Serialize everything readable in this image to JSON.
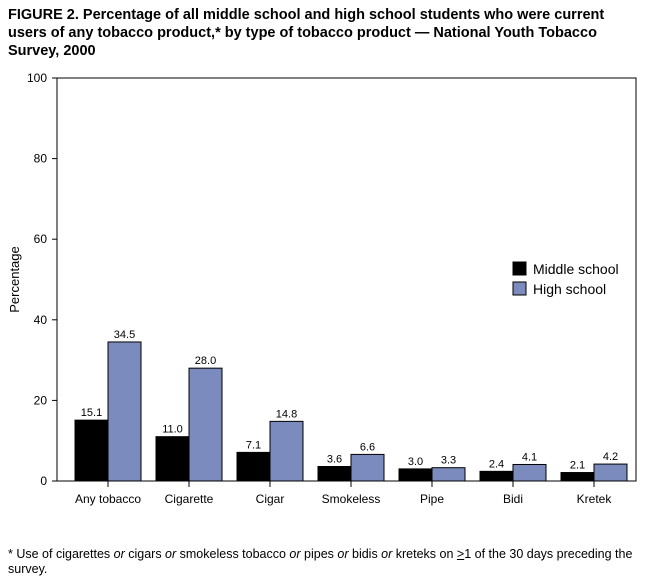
{
  "chart_data": {
    "type": "bar",
    "title": "FIGURE 2. Percentage of all middle school and high school students who were current users of any tobacco product,* by type of tobacco product — National Youth Tobacco Survey, 2000",
    "xlabel": "",
    "ylabel": "Percentage",
    "ylim": [
      0,
      100
    ],
    "yticks": [
      "0",
      "20",
      "40",
      "60",
      "80",
      "100"
    ],
    "categories": [
      "Any tobacco",
      "Cigarette",
      "Cigar",
      "Smokeless",
      "Pipe",
      "Bidi",
      "Kretek"
    ],
    "series": [
      {
        "name": "Middle school",
        "color": "#000000",
        "values": [
          15.1,
          11.0,
          7.1,
          3.6,
          3.0,
          2.4,
          2.1
        ],
        "labels": [
          "15.1",
          "11.0",
          "7.1",
          "3.6",
          "3.0",
          "2.4",
          "2.1"
        ]
      },
      {
        "name": "High school",
        "color": "#7b8bbd",
        "values": [
          34.5,
          28.0,
          14.8,
          6.6,
          3.3,
          4.1,
          4.2
        ],
        "labels": [
          "34.5",
          "28.0",
          "14.8",
          "6.6",
          "3.3",
          "4.1",
          "4.2"
        ]
      }
    ],
    "legend_position": "right",
    "grid": false
  },
  "footnote": {
    "star": "*",
    "parts": [
      "Use of cigarettes ",
      "or",
      " cigars ",
      "or",
      " smokeless tobacco ",
      "or",
      " pipes ",
      "or",
      " bidis ",
      "or",
      " kreteks on ",
      ">",
      "1 of the 30 days preceding the survey."
    ]
  }
}
